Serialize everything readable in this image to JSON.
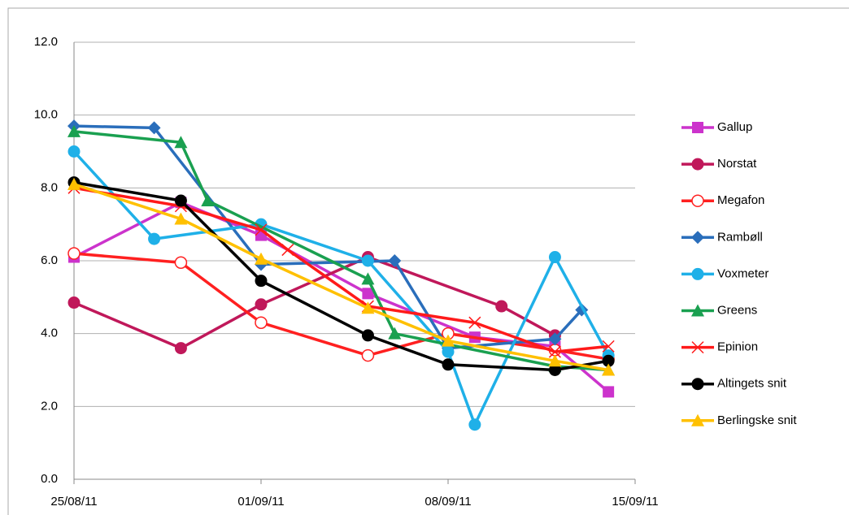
{
  "chart_data": {
    "type": "line",
    "xlim": [
      "2011-08-25",
      "2011-09-15"
    ],
    "xticks": [
      {
        "value": "2011-08-25",
        "label": "25/08/11"
      },
      {
        "value": "2011-09-01",
        "label": "01/09/11"
      },
      {
        "value": "2011-09-08",
        "label": "08/09/11"
      },
      {
        "value": "2011-09-15",
        "label": "15/09/11"
      }
    ],
    "ylim": [
      0,
      12
    ],
    "yticks": [
      {
        "value": 0,
        "label": "0.0"
      },
      {
        "value": 2,
        "label": "2.0"
      },
      {
        "value": 4,
        "label": "4.0"
      },
      {
        "value": 6,
        "label": "6.0"
      },
      {
        "value": 8,
        "label": "8.0"
      },
      {
        "value": 10,
        "label": "10.0"
      },
      {
        "value": 12,
        "label": "12.0"
      }
    ],
    "grid": true,
    "legend": "right",
    "series": [
      {
        "name": "Gallup",
        "color": "#cc33cc",
        "marker": "square",
        "x": [
          "2011-08-25",
          "2011-08-29",
          "2011-09-01",
          "2011-09-05",
          "2011-09-09",
          "2011-09-12",
          "2011-09-14"
        ],
        "values": [
          6.1,
          7.6,
          6.7,
          5.1,
          3.9,
          3.65,
          2.4
        ]
      },
      {
        "name": "Norstat",
        "color": "#c0185a",
        "marker": "circle",
        "x": [
          "2011-08-25",
          "2011-08-29",
          "2011-09-01",
          "2011-09-05",
          "2011-09-10",
          "2011-09-12"
        ],
        "values": [
          4.85,
          3.6,
          4.8,
          6.1,
          4.75,
          3.95
        ]
      },
      {
        "name": "Megafon",
        "color": "#ff2020",
        "marker": "open-circle",
        "x": [
          "2011-08-25",
          "2011-08-29",
          "2011-09-01",
          "2011-09-05",
          "2011-09-08",
          "2011-09-12",
          "2011-09-14"
        ],
        "values": [
          6.2,
          5.95,
          4.3,
          3.4,
          4.0,
          3.55,
          3.3
        ]
      },
      {
        "name": "Rambøll",
        "color": "#2a6ebb",
        "marker": "diamond",
        "x": [
          "2011-08-25",
          "2011-08-28",
          "2011-09-01",
          "2011-09-06",
          "2011-09-08",
          "2011-09-12",
          "2011-09-13"
        ],
        "values": [
          9.7,
          9.65,
          5.9,
          6.0,
          3.6,
          3.85,
          4.65
        ]
      },
      {
        "name": "Voxmeter",
        "color": "#1fb0e8",
        "marker": "circle",
        "x": [
          "2011-08-25",
          "2011-08-28",
          "2011-09-01",
          "2011-09-05",
          "2011-09-08",
          "2011-09-09",
          "2011-09-12",
          "2011-09-14"
        ],
        "values": [
          9.0,
          6.6,
          7.0,
          6.0,
          3.5,
          1.5,
          6.1,
          3.4
        ]
      },
      {
        "name": "Greens",
        "color": "#1aa050",
        "marker": "triangle",
        "x": [
          "2011-08-25",
          "2011-08-29",
          "2011-08-30",
          "2011-09-05",
          "2011-09-06",
          "2011-09-12",
          "2011-09-14"
        ],
        "values": [
          9.55,
          9.25,
          7.65,
          5.5,
          4.0,
          3.1,
          3.0
        ]
      },
      {
        "name": "Epinion",
        "color": "#ff1a1a",
        "marker": "cross",
        "x": [
          "2011-08-25",
          "2011-08-29",
          "2011-09-01",
          "2011-09-02",
          "2011-09-05",
          "2011-09-09",
          "2011-09-12",
          "2011-09-14"
        ],
        "values": [
          8.0,
          7.5,
          6.85,
          6.3,
          4.75,
          4.3,
          3.5,
          3.65
        ]
      },
      {
        "name": "Altingets snit",
        "color": "#000000",
        "marker": "circle",
        "x": [
          "2011-08-25",
          "2011-08-29",
          "2011-09-01",
          "2011-09-05",
          "2011-09-08",
          "2011-09-12",
          "2011-09-14"
        ],
        "values": [
          8.15,
          7.65,
          5.45,
          3.95,
          3.15,
          3.0,
          3.25
        ]
      },
      {
        "name": "Berlingske snit",
        "color": "#ffc000",
        "marker": "triangle",
        "x": [
          "2011-08-25",
          "2011-08-29",
          "2011-09-01",
          "2011-09-05",
          "2011-09-08",
          "2011-09-12",
          "2011-09-14"
        ],
        "values": [
          8.1,
          7.15,
          6.05,
          4.7,
          3.8,
          3.25,
          3.0
        ]
      }
    ]
  }
}
